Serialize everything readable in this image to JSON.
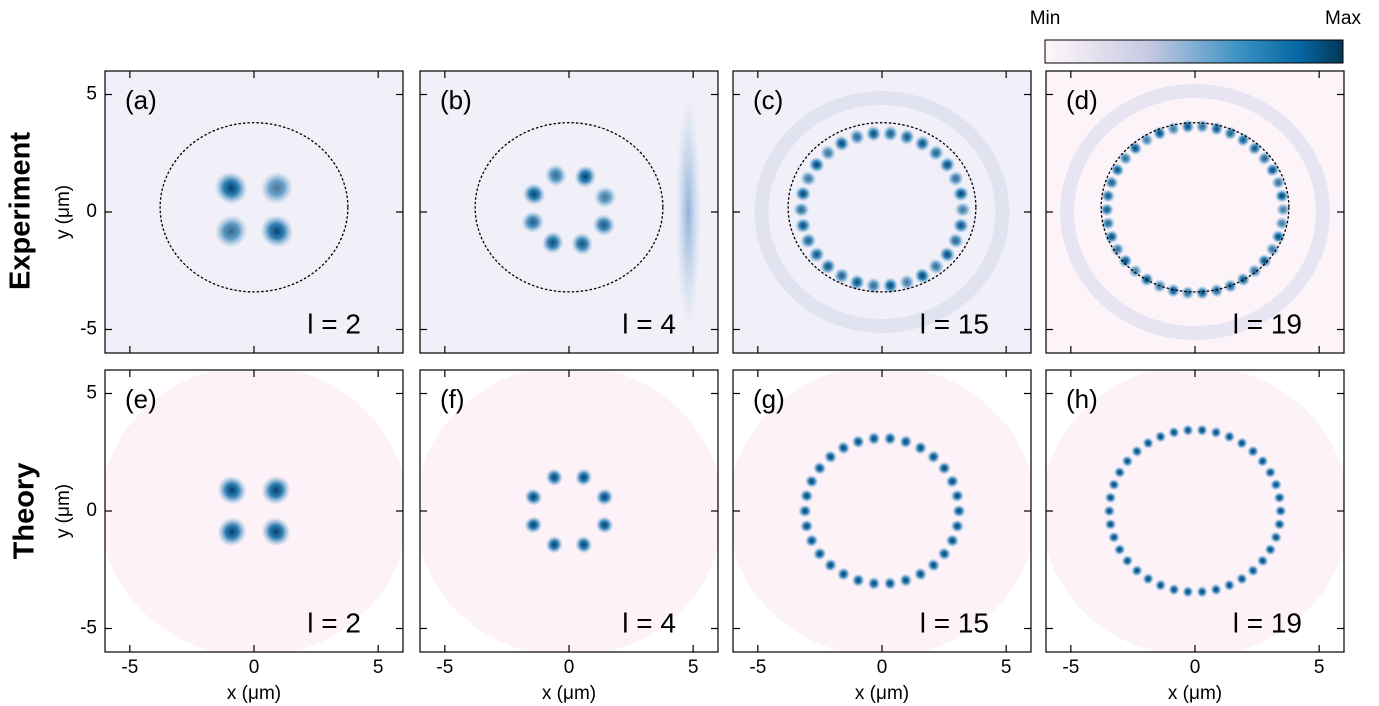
{
  "figure": {
    "row_labels": [
      "Experiment",
      "Theory"
    ],
    "colorbar": {
      "min_label": "Min",
      "max_label": "Max"
    }
  },
  "chart_data": [
    {
      "type": "heatmap",
      "panel_label": "(a)",
      "annotation": "l = 2",
      "ylabel": "y (μm)",
      "xlim": [
        -6,
        6
      ],
      "ylim": [
        -6,
        6
      ],
      "xticks": [
        -5,
        0,
        5
      ],
      "yticks": [
        -5,
        0,
        5
      ]
    },
    {
      "type": "heatmap",
      "panel_label": "(b)",
      "annotation": "l = 4",
      "xlim": [
        -6,
        6
      ],
      "ylim": [
        -6,
        6
      ],
      "xticks": [
        -5,
        0,
        5
      ],
      "yticks": [
        -5,
        0,
        5
      ]
    },
    {
      "type": "heatmap",
      "panel_label": "(c)",
      "annotation": "l = 15",
      "xlim": [
        -6,
        6
      ],
      "ylim": [
        -6,
        6
      ],
      "xticks": [
        -5,
        0,
        5
      ],
      "yticks": [
        -5,
        0,
        5
      ]
    },
    {
      "type": "heatmap",
      "panel_label": "(d)",
      "annotation": "l = 19",
      "xlim": [
        -6,
        6
      ],
      "ylim": [
        -6,
        6
      ],
      "xticks": [
        -5,
        0,
        5
      ],
      "yticks": [
        -5,
        0,
        5
      ]
    },
    {
      "type": "heatmap",
      "panel_label": "(e)",
      "annotation": "l = 2",
      "ylabel": "y (μm)",
      "xlabel": "x (μm)",
      "xlim": [
        -6,
        6
      ],
      "ylim": [
        -6,
        6
      ],
      "xticks": [
        -5,
        0,
        5
      ],
      "yticks": [
        -5,
        0,
        5
      ]
    },
    {
      "type": "heatmap",
      "panel_label": "(f)",
      "annotation": "l = 4",
      "xlabel": "x (μm)",
      "xlim": [
        -6,
        6
      ],
      "ylim": [
        -6,
        6
      ],
      "xticks": [
        -5,
        0,
        5
      ],
      "yticks": [
        -5,
        0,
        5
      ]
    },
    {
      "type": "heatmap",
      "panel_label": "(g)",
      "annotation": "l = 15",
      "xlabel": "x (μm)",
      "xlim": [
        -6,
        6
      ],
      "ylim": [
        -6,
        6
      ],
      "xticks": [
        -5,
        0,
        5
      ],
      "yticks": [
        -5,
        0,
        5
      ]
    },
    {
      "type": "heatmap",
      "panel_label": "(h)",
      "annotation": "l = 19",
      "xlabel": "x (μm)",
      "xlim": [
        -6,
        6
      ],
      "ylim": [
        -6,
        6
      ],
      "xticks": [
        -5,
        0,
        5
      ],
      "yticks": [
        -5,
        0,
        5
      ]
    }
  ]
}
